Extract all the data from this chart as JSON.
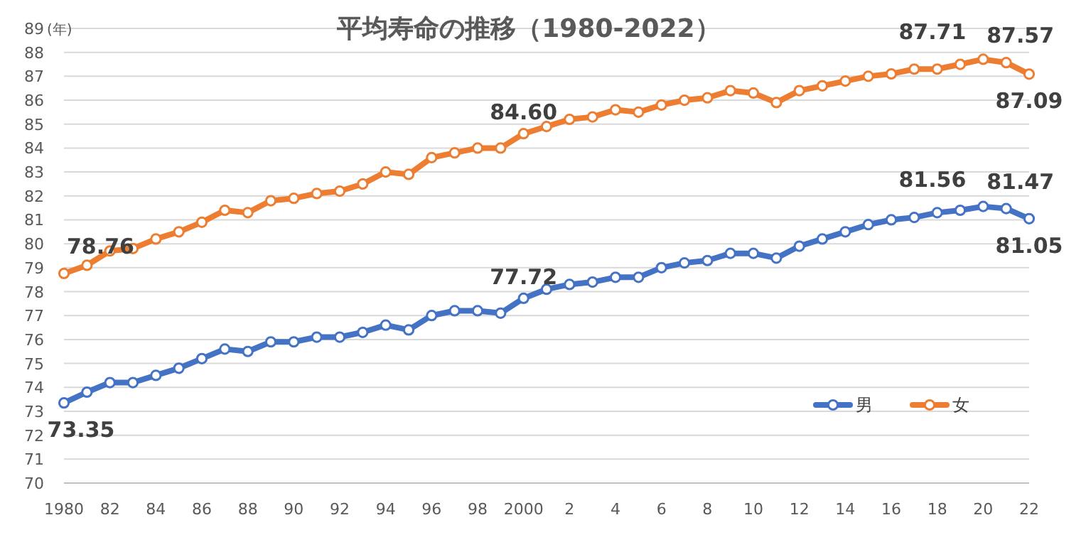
{
  "chart_data": {
    "type": "line",
    "title": "平均寿命の推移（1980-2022）",
    "ylabel": "(年)",
    "categories": [
      "1980",
      null,
      "82",
      null,
      "84",
      null,
      "86",
      null,
      "88",
      null,
      "90",
      null,
      "92",
      null,
      "94",
      null,
      "96",
      null,
      "98",
      null,
      "2000",
      null,
      "2",
      null,
      "4",
      null,
      "6",
      null,
      "8",
      null,
      "10",
      null,
      "12",
      null,
      "14",
      null,
      "16",
      null,
      "18",
      null,
      "20",
      null,
      "22"
    ],
    "ylim": [
      70,
      89
    ],
    "yticks": [
      70,
      71,
      72,
      73,
      74,
      75,
      76,
      77,
      78,
      79,
      80,
      81,
      82,
      83,
      84,
      85,
      86,
      87,
      88,
      89
    ],
    "grid": "y",
    "legend": "bottom right",
    "marker": "circle",
    "line_style": "solid",
    "series": [
      {
        "name": "男",
        "color": "#4472c4",
        "values": [
          73.35,
          73.8,
          74.2,
          74.2,
          74.5,
          74.8,
          75.2,
          75.6,
          75.5,
          75.9,
          75.9,
          76.1,
          76.1,
          76.3,
          76.6,
          76.4,
          77.0,
          77.2,
          77.2,
          77.1,
          77.72,
          78.1,
          78.3,
          78.4,
          78.6,
          78.6,
          79.0,
          79.2,
          79.3,
          79.6,
          79.6,
          79.4,
          79.9,
          80.2,
          80.5,
          80.8,
          81.0,
          81.1,
          81.3,
          81.4,
          81.56,
          81.47,
          81.05
        ],
        "value_labels": [
          "73.35",
          null,
          null,
          null,
          null,
          null,
          null,
          null,
          null,
          null,
          null,
          null,
          null,
          null,
          null,
          null,
          null,
          null,
          null,
          null,
          "77.72",
          null,
          null,
          null,
          null,
          null,
          null,
          null,
          null,
          null,
          null,
          null,
          null,
          null,
          null,
          null,
          null,
          null,
          null,
          null,
          "81.56",
          "81.47",
          "81.05"
        ]
      },
      {
        "name": "女",
        "color": "#ed7d31",
        "values": [
          78.76,
          79.1,
          79.7,
          79.8,
          80.2,
          80.5,
          80.9,
          81.4,
          81.3,
          81.8,
          81.9,
          82.1,
          82.2,
          82.5,
          83.0,
          82.9,
          83.6,
          83.8,
          84.0,
          84.0,
          84.6,
          84.9,
          85.2,
          85.3,
          85.6,
          85.5,
          85.8,
          86.0,
          86.1,
          86.4,
          86.3,
          85.9,
          86.4,
          86.6,
          86.8,
          87.0,
          87.1,
          87.3,
          87.3,
          87.5,
          87.71,
          87.57,
          87.09
        ],
        "value_labels": [
          "78.76",
          null,
          null,
          null,
          null,
          null,
          null,
          null,
          null,
          null,
          null,
          null,
          null,
          null,
          null,
          null,
          null,
          null,
          null,
          null,
          "84.60",
          null,
          null,
          null,
          null,
          null,
          null,
          null,
          null,
          null,
          null,
          null,
          null,
          null,
          null,
          null,
          null,
          null,
          null,
          null,
          "87.71",
          "87.57",
          "87.09"
        ]
      }
    ]
  }
}
